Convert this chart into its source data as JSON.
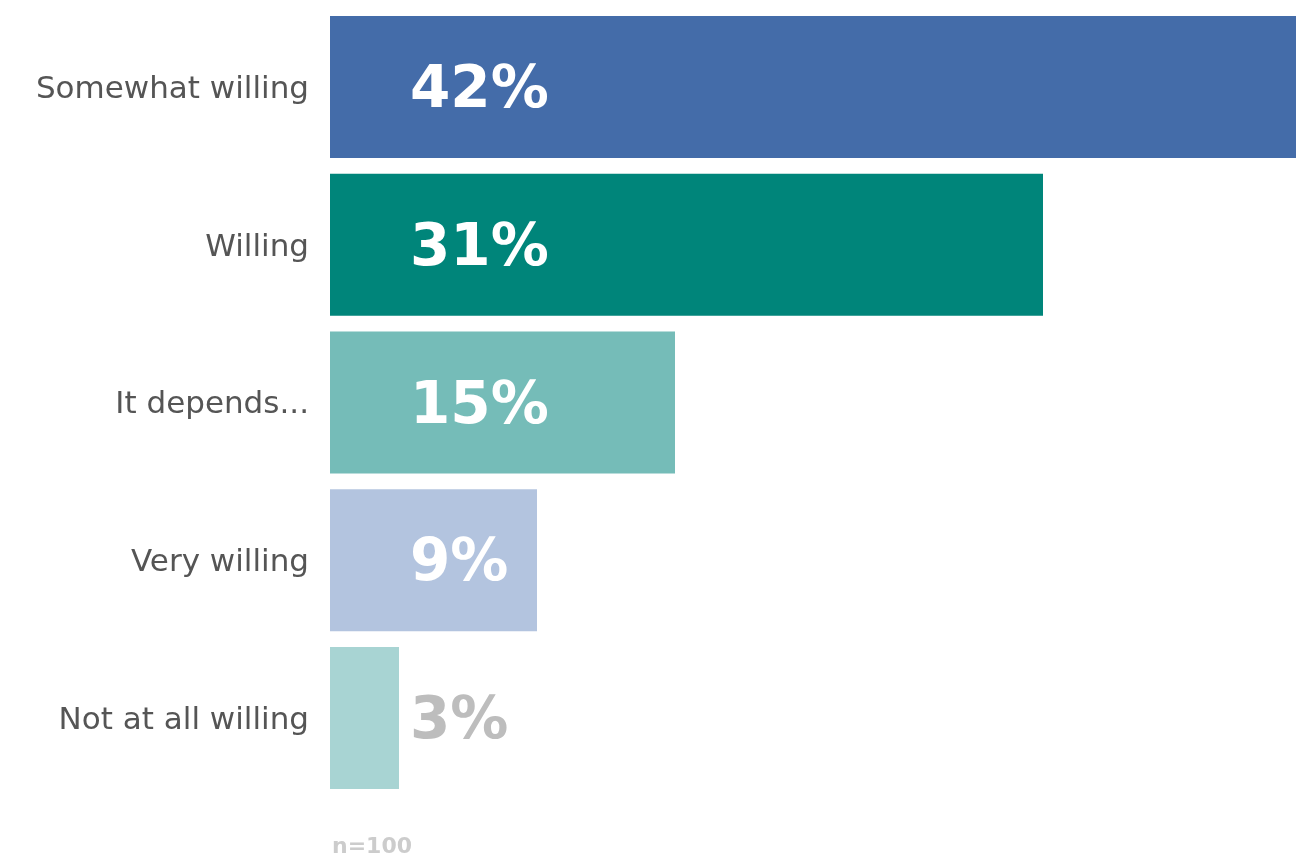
{
  "chart_data": {
    "type": "bar",
    "orientation": "horizontal",
    "categories": [
      "Somewhat willing",
      "Willing",
      "It depends...",
      "Very willing",
      "Not at all willing"
    ],
    "values": [
      42,
      31,
      15,
      9,
      3
    ],
    "colors": [
      "#446ca9",
      "#00857a",
      "#75bcb8",
      "#b3c4df",
      "#a8d4d3"
    ],
    "value_labels": [
      "42%",
      "31%",
      "15%",
      "9%",
      "3%"
    ],
    "grid": false,
    "annotations": [
      "n=100"
    ]
  }
}
